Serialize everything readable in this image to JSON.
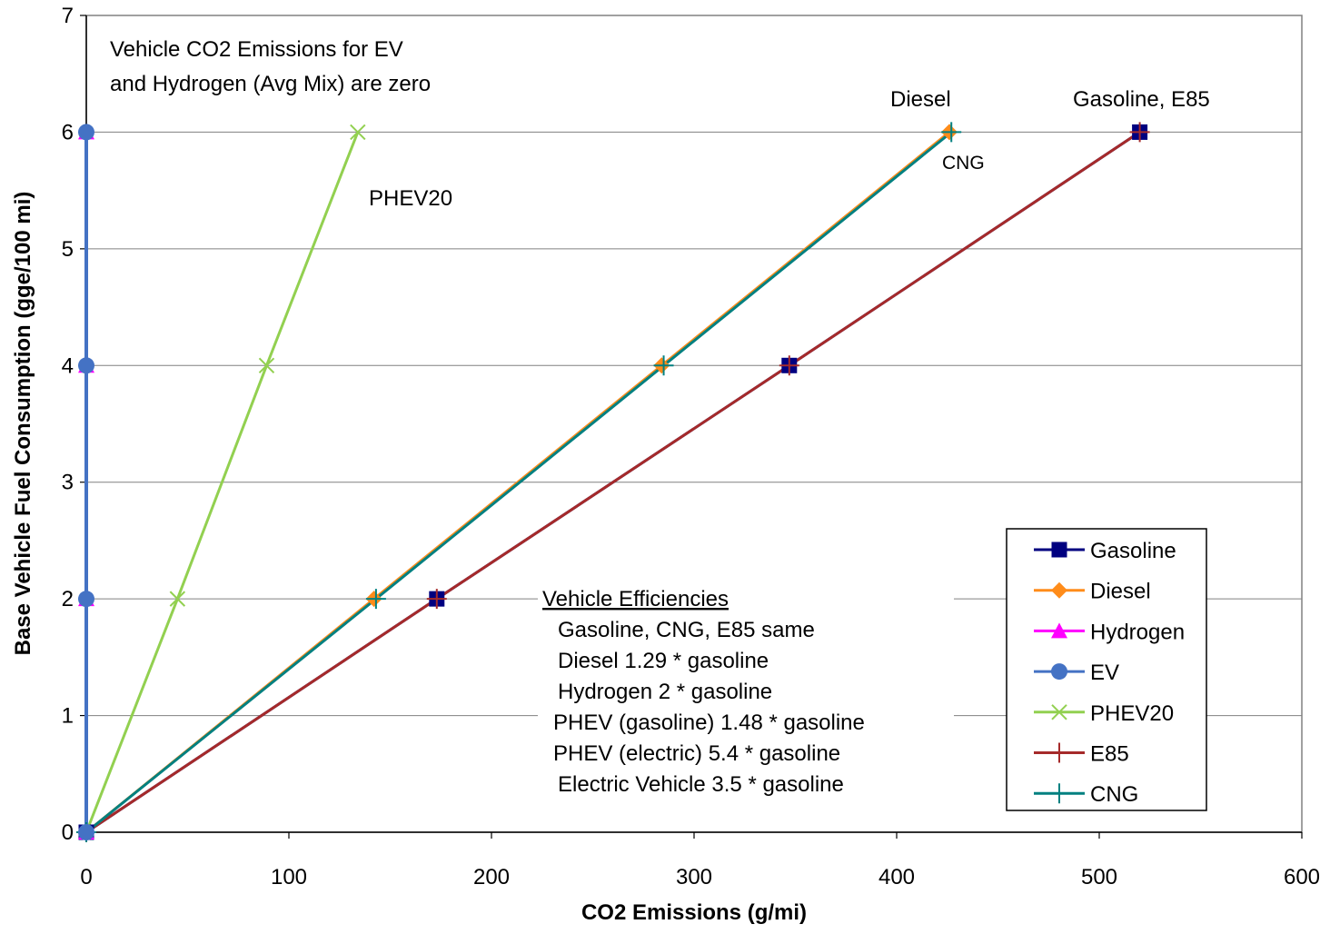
{
  "chart_data": {
    "type": "line",
    "title": "",
    "xlabel": "CO2 Emissions (g/mi)",
    "ylabel": "Base Vehicle Fuel Consumption (gge/100 mi)",
    "xlim": [
      0,
      600
    ],
    "ylim": [
      0,
      7
    ],
    "xticks": [
      0,
      100,
      200,
      300,
      400,
      500,
      600
    ],
    "yticks": [
      0,
      1,
      2,
      3,
      4,
      5,
      6,
      7
    ],
    "grid": "horizontal",
    "legend_position": "bottom-right",
    "series": [
      {
        "name": "Gasoline",
        "color": "#000080",
        "marker": "square",
        "points": [
          [
            0,
            0
          ],
          [
            173,
            2
          ],
          [
            347,
            4
          ],
          [
            520,
            6
          ]
        ]
      },
      {
        "name": "Diesel",
        "color": "#ff8c1a",
        "marker": "diamond",
        "points": [
          [
            0,
            0
          ],
          [
            142,
            2
          ],
          [
            284,
            4
          ],
          [
            426,
            6
          ]
        ]
      },
      {
        "name": "Hydrogen",
        "color": "#ff00ff",
        "marker": "triangle",
        "points": [
          [
            0,
            0
          ],
          [
            0,
            2
          ],
          [
            0,
            4
          ],
          [
            0,
            6
          ]
        ]
      },
      {
        "name": "EV",
        "color": "#4472c4",
        "marker": "circle",
        "points": [
          [
            0,
            0
          ],
          [
            0,
            2
          ],
          [
            0,
            4
          ],
          [
            0,
            6
          ]
        ]
      },
      {
        "name": "PHEV20",
        "color": "#92d050",
        "marker": "x",
        "points": [
          [
            0,
            0
          ],
          [
            45,
            2
          ],
          [
            89,
            4
          ],
          [
            134,
            6
          ]
        ]
      },
      {
        "name": "E85",
        "color": "#a52a2a",
        "marker": "plus",
        "points": [
          [
            0,
            0
          ],
          [
            173,
            2
          ],
          [
            347,
            4
          ],
          [
            520,
            6
          ]
        ]
      },
      {
        "name": "CNG",
        "color": "#008080",
        "marker": "plus",
        "points": [
          [
            0,
            0
          ],
          [
            143,
            2
          ],
          [
            285,
            4
          ],
          [
            427,
            6
          ]
        ]
      }
    ],
    "annotations": [
      {
        "id": "zero-note-1",
        "text": "Vehicle CO2 Emissions for EV"
      },
      {
        "id": "zero-note-2",
        "text": "and Hydrogen (Avg Mix) are  zero"
      },
      {
        "id": "label-diesel",
        "text": "Diesel"
      },
      {
        "id": "label-gasoline-e85",
        "text": "Gasoline, E85"
      },
      {
        "id": "label-cng",
        "text": "CNG"
      },
      {
        "id": "label-phev20",
        "text": "PHEV20"
      }
    ],
    "efficiency_note": {
      "heading": "Vehicle Efficiencies",
      "lines": [
        "Gasoline, CNG, E85 same",
        "Diesel 1.29 * gasoline",
        "Hydrogen 2 * gasoline",
        "PHEV (gasoline) 1.48 * gasoline",
        "PHEV (electric) 5.4 * gasoline",
        "Electric Vehicle 3.5 * gasoline"
      ]
    }
  }
}
